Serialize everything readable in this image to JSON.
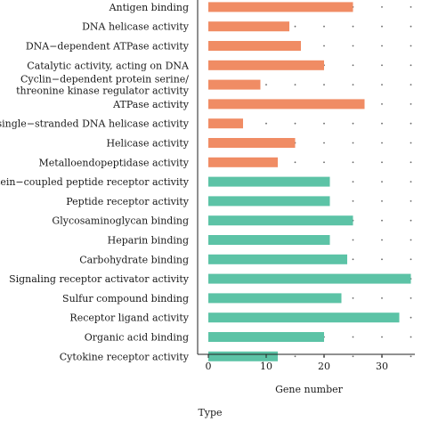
{
  "chart_data": {
    "type": "bar",
    "orientation": "horizontal",
    "xlabel": "Gene number",
    "ylabel": "",
    "xlim": [
      -2,
      36
    ],
    "xticks": [
      0,
      10,
      20,
      30
    ],
    "grid": "dotted",
    "colors": {
      "orange": "#f08c64",
      "teal": "#5cc3a6",
      "dots": "#666666"
    },
    "categories": [
      "Antigen binding",
      "DNA helicase activity",
      "DNA−dependent ATPase activity",
      "Catalytic activity, acting on DNA",
      "Cyclin−dependent protein serine/\nthreonine kinase regulator activity",
      "ATPase activity",
      "single−stranded DNA helicase activity",
      "Helicase activity",
      "Metalloendopeptidase activity",
      "G protein−coupled peptide receptor activity",
      "Peptide receptor activity",
      "Glycosaminoglycan binding",
      "Heparin binding",
      "Carbohydrate binding",
      "Signaling receptor activator activity",
      "Sulfur compound binding",
      "Receptor ligand activity",
      "Organic acid binding",
      "Cytokine receptor activity"
    ],
    "values": [
      25,
      14,
      16,
      20,
      9,
      27,
      6,
      15,
      12,
      21,
      21,
      25,
      21,
      24,
      35,
      23,
      33,
      20,
      12
    ],
    "bar_colors": [
      "orange",
      "orange",
      "orange",
      "orange",
      "orange",
      "orange",
      "orange",
      "orange",
      "orange",
      "teal",
      "teal",
      "teal",
      "teal",
      "teal",
      "teal",
      "teal",
      "teal",
      "teal",
      "teal"
    ]
  },
  "legend": {
    "title": "Type"
  }
}
